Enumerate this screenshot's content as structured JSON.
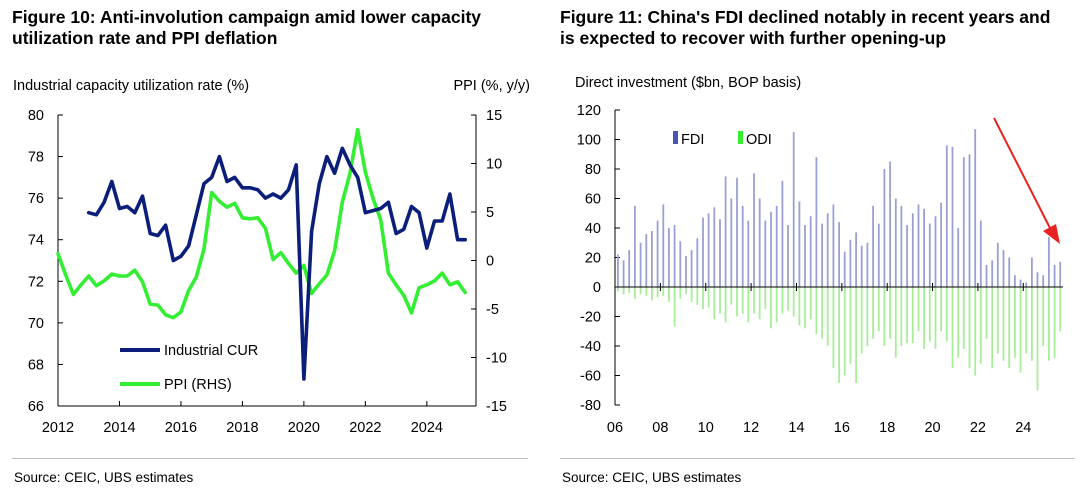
{
  "figure_left": {
    "title_line1": "Figure 10: Anti-involution campaign amid lower capacity",
    "title_line2": "utilization rate and PPI deflation",
    "source": "Source: CEIC, UBS estimates"
  },
  "figure_right": {
    "title_line1": "Figure 11: China's FDI declined notably in recent years and",
    "title_line2": "is expected to recover with further opening-up",
    "source": "Source: CEIC, UBS estimates"
  },
  "chart_data": [
    {
      "type": "line",
      "title": "Figure 10: Anti-involution campaign amid lower capacity utilization rate and PPI deflation",
      "ylabel": "Industrial capacity utilization rate (%)",
      "ylabel_right": "PPI (%, y/y)",
      "xlim": [
        2012,
        2025.6
      ],
      "ylim": [
        66,
        80
      ],
      "ylim_right": [
        -15,
        15
      ],
      "x_ticks": [
        "2012",
        "2014",
        "2016",
        "2018",
        "2020",
        "2022",
        "2024"
      ],
      "y_ticks": [
        "66",
        "68",
        "70",
        "72",
        "74",
        "76",
        "78",
        "80"
      ],
      "y_ticks_right": [
        "-15",
        "-10",
        "-5",
        "0",
        "5",
        "10",
        "15"
      ],
      "legend_position": "bottom-left",
      "series": [
        {
          "name": "Industrial CUR",
          "axis": "left",
          "color": "#0b1f7a",
          "x": [
            2013.0,
            2013.25,
            2013.5,
            2013.75,
            2014.0,
            2014.25,
            2014.5,
            2014.75,
            2015.0,
            2015.25,
            2015.5,
            2015.75,
            2016.0,
            2016.25,
            2016.5,
            2016.75,
            2017.0,
            2017.25,
            2017.5,
            2017.75,
            2018.0,
            2018.25,
            2018.5,
            2018.75,
            2019.0,
            2019.25,
            2019.5,
            2019.75,
            2020.0,
            2020.25,
            2020.5,
            2020.75,
            2021.0,
            2021.25,
            2021.5,
            2021.75,
            2022.0,
            2022.25,
            2022.5,
            2022.75,
            2023.0,
            2023.25,
            2023.5,
            2023.75,
            2024.0,
            2024.25,
            2024.5,
            2024.75,
            2025.0,
            2025.25
          ],
          "y": [
            75.3,
            75.2,
            75.8,
            76.8,
            75.5,
            75.6,
            75.3,
            76.1,
            74.3,
            74.2,
            74.7,
            73.0,
            73.2,
            73.7,
            75.2,
            76.7,
            77.0,
            78.0,
            76.8,
            77.0,
            76.5,
            76.5,
            76.4,
            76.0,
            76.2,
            76.0,
            76.4,
            77.6,
            67.3,
            74.4,
            76.7,
            78.0,
            77.2,
            78.4,
            77.6,
            77.0,
            75.3,
            75.4,
            75.5,
            75.8,
            74.3,
            74.5,
            75.6,
            75.3,
            73.6,
            74.9,
            74.9,
            76.2,
            74.0,
            74.0
          ]
        },
        {
          "name": "PPI (RHS)",
          "axis": "right",
          "color": "#33ee33",
          "x": [
            2012.0,
            2012.25,
            2012.5,
            2012.75,
            2013.0,
            2013.25,
            2013.5,
            2013.75,
            2014.0,
            2014.25,
            2014.5,
            2014.75,
            2015.0,
            2015.25,
            2015.5,
            2015.75,
            2016.0,
            2016.25,
            2016.5,
            2016.75,
            2017.0,
            2017.25,
            2017.5,
            2017.75,
            2018.0,
            2018.25,
            2018.5,
            2018.75,
            2019.0,
            2019.25,
            2019.5,
            2019.75,
            2020.0,
            2020.25,
            2020.5,
            2020.75,
            2021.0,
            2021.25,
            2021.5,
            2021.75,
            2022.0,
            2022.25,
            2022.5,
            2022.75,
            2023.0,
            2023.25,
            2023.5,
            2023.75,
            2024.0,
            2024.25,
            2024.5,
            2024.75,
            2025.0,
            2025.25
          ],
          "y": [
            0.7,
            -1.5,
            -3.5,
            -2.5,
            -1.6,
            -2.6,
            -2.1,
            -1.4,
            -1.6,
            -1.6,
            -1.0,
            -2.2,
            -4.5,
            -4.6,
            -5.6,
            -5.9,
            -5.3,
            -3.1,
            -1.7,
            1.2,
            7.0,
            6.1,
            5.5,
            5.9,
            4.4,
            4.3,
            4.4,
            3.3,
            0.1,
            0.8,
            -0.3,
            -1.3,
            -0.5,
            -3.4,
            -2.4,
            -1.5,
            1.0,
            6.0,
            9.0,
            13.5,
            9.1,
            6.4,
            4.2,
            -1.3,
            -2.5,
            -3.6,
            -5.4,
            -2.8,
            -2.5,
            -2.1,
            -1.3,
            -2.5,
            -2.2,
            -3.3
          ]
        }
      ]
    },
    {
      "type": "bar",
      "title": "Figure 11: China's FDI declined notably in recent years and is expected to recover with further opening-up",
      "ylabel": "Direct investment ($bn, BOP basis)",
      "xlim": [
        2006,
        2025.75
      ],
      "ylim": [
        -80,
        120
      ],
      "x_ticks": [
        "06",
        "08",
        "10",
        "12",
        "14",
        "16",
        "18",
        "20",
        "22",
        "24"
      ],
      "y_ticks": [
        "-80",
        "-60",
        "-40",
        "-20",
        "0",
        "20",
        "40",
        "60",
        "80",
        "100",
        "120"
      ],
      "legend_position": "top-left",
      "annotation": "red downward arrow (FDI decline)",
      "annotation_color": "#e8221e",
      "series": [
        {
          "name": "FDI",
          "color": "#9aa0d4",
          "legend_color": "#4a55b0",
          "x": [
            2006.0,
            2006.25,
            2006.5,
            2006.75,
            2007.0,
            2007.25,
            2007.5,
            2007.75,
            2008.0,
            2008.25,
            2008.5,
            2008.75,
            2009.0,
            2009.25,
            2009.5,
            2009.75,
            2010.0,
            2010.25,
            2010.5,
            2010.75,
            2011.0,
            2011.25,
            2011.5,
            2011.75,
            2012.0,
            2012.25,
            2012.5,
            2012.75,
            2013.0,
            2013.25,
            2013.5,
            2013.75,
            2014.0,
            2014.25,
            2014.5,
            2014.75,
            2015.0,
            2015.25,
            2015.5,
            2015.75,
            2016.0,
            2016.25,
            2016.5,
            2016.75,
            2017.0,
            2017.25,
            2017.5,
            2017.75,
            2018.0,
            2018.25,
            2018.5,
            2018.75,
            2019.0,
            2019.25,
            2019.5,
            2019.75,
            2020.0,
            2020.25,
            2020.5,
            2020.75,
            2021.0,
            2021.25,
            2021.5,
            2021.75,
            2022.0,
            2022.25,
            2022.5,
            2022.75,
            2023.0,
            2023.25,
            2023.5,
            2023.75,
            2024.0,
            2024.25,
            2024.5,
            2024.75,
            2025.0,
            2025.25,
            2025.5
          ],
          "values": [
            22,
            18,
            25,
            55,
            30,
            36,
            38,
            45,
            56,
            40,
            42,
            31,
            21,
            25,
            33,
            47,
            50,
            54,
            46,
            75,
            60,
            74,
            55,
            45,
            77,
            60,
            45,
            51,
            55,
            72,
            42,
            105,
            58,
            42,
            48,
            88,
            43,
            50,
            56,
            44,
            24,
            32,
            37,
            28,
            30,
            55,
            43,
            80,
            85,
            60,
            55,
            42,
            50,
            56,
            53,
            43,
            48,
            57,
            96,
            95,
            40,
            88,
            90,
            107,
            45,
            15,
            18,
            30,
            25,
            20,
            8,
            5,
            3,
            20,
            10,
            8,
            34,
            15,
            17
          ]
        },
        {
          "name": "ODI",
          "color": "#a8ee98",
          "legend_color": "#33ee33",
          "x": [
            2006.0,
            2006.25,
            2006.5,
            2006.75,
            2007.0,
            2007.25,
            2007.5,
            2007.75,
            2008.0,
            2008.25,
            2008.5,
            2008.75,
            2009.0,
            2009.25,
            2009.5,
            2009.75,
            2010.0,
            2010.25,
            2010.5,
            2010.75,
            2011.0,
            2011.25,
            2011.5,
            2011.75,
            2012.0,
            2012.25,
            2012.5,
            2012.75,
            2013.0,
            2013.25,
            2013.5,
            2013.75,
            2014.0,
            2014.25,
            2014.5,
            2014.75,
            2015.0,
            2015.25,
            2015.5,
            2015.75,
            2016.0,
            2016.25,
            2016.5,
            2016.75,
            2017.0,
            2017.25,
            2017.5,
            2017.75,
            2018.0,
            2018.25,
            2018.5,
            2018.75,
            2019.0,
            2019.25,
            2019.5,
            2019.75,
            2020.0,
            2020.25,
            2020.5,
            2020.75,
            2021.0,
            2021.25,
            2021.5,
            2021.75,
            2022.0,
            2022.25,
            2022.5,
            2022.75,
            2023.0,
            2023.25,
            2023.5,
            2023.75,
            2024.0,
            2024.25,
            2024.5,
            2024.75,
            2025.0,
            2025.25,
            2025.5
          ],
          "values": [
            -3,
            -5,
            -4,
            -8,
            -5,
            -6,
            -9,
            -7,
            -6,
            -10,
            -27,
            -8,
            -5,
            -10,
            -12,
            -15,
            -14,
            -22,
            -18,
            -24,
            -12,
            -20,
            -18,
            -24,
            -18,
            -22,
            -15,
            -28,
            -24,
            -18,
            -16,
            -20,
            -26,
            -28,
            -22,
            -32,
            -35,
            -40,
            -55,
            -65,
            -60,
            -52,
            -65,
            -45,
            -40,
            -35,
            -30,
            -40,
            -35,
            -48,
            -40,
            -38,
            -38,
            -30,
            -42,
            -37,
            -42,
            -30,
            -37,
            -55,
            -48,
            -42,
            -55,
            -60,
            -52,
            -35,
            -55,
            -45,
            -50,
            -55,
            -48,
            -58,
            -45,
            -50,
            -70,
            -40,
            -50,
            -48,
            -30
          ]
        }
      ]
    }
  ]
}
